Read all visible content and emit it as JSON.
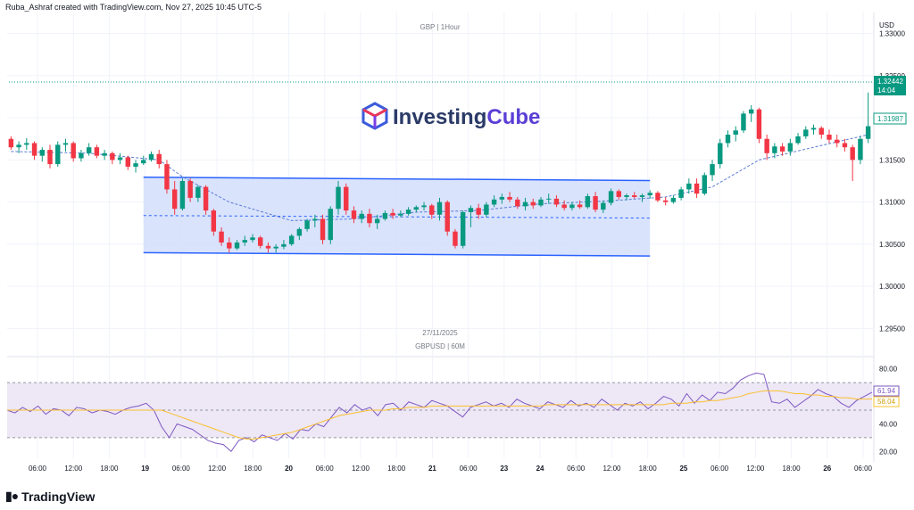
{
  "header": {
    "created_by": "Ruba_Ashraf created with TradingView.com, Nov 27, 2025 10:45 UTC-5"
  },
  "watermark": {
    "symbol_interval": "GBP | 1Hour",
    "logo_text_a": "Investing",
    "logo_text_b": "Cube"
  },
  "caption": {
    "date": "27/11/2025",
    "symbol": "GBPUSD | 60M"
  },
  "currency": "USD",
  "brand": "TradingView",
  "colors": {
    "up": "#089981",
    "down": "#f23645",
    "channel_fill": "#d2defc",
    "channel_line": "#2962ff",
    "rsi_line": "#7e57c2",
    "rsi_ma": "#fbc02d",
    "rsi_band": "#ede7f6",
    "price_tag": "#089981"
  },
  "price_labels": {
    "current": "1.32442",
    "countdown": "14:04",
    "ma_value": "1.31987"
  },
  "rsi_labels": {
    "rsi": "61.94",
    "ma": "58.04"
  },
  "chart_data": [
    {
      "type": "candlestick",
      "title": "GBP | 1Hour",
      "ylim": [
        1.2925,
        1.3325
      ],
      "y_ticks": [
        "1.33000",
        "1.32500",
        "1.32000",
        "1.31500",
        "1.31000",
        "1.30500",
        "1.30000",
        "1.29500"
      ],
      "x_ticks": [
        "06:00",
        "12:00",
        "18:00",
        "19",
        "06:00",
        "12:00",
        "18:00",
        "20",
        "06:00",
        "12:00",
        "18:00",
        "21",
        "06:00",
        "23",
        "24",
        "06:00",
        "12:00",
        "18:00",
        "25",
        "06:00",
        "12:00",
        "18:00",
        "26",
        "06:00"
      ],
      "x_ticks_bold": [
        "19",
        "20",
        "21",
        "23",
        "24",
        "25",
        "26"
      ],
      "candles": [
        [
          1.3175,
          1.3178,
          1.3162,
          1.3165
        ],
        [
          1.3165,
          1.3172,
          1.3158,
          1.3168
        ],
        [
          1.3168,
          1.3176,
          1.3162,
          1.317
        ],
        [
          1.317,
          1.3172,
          1.315,
          1.3155
        ],
        [
          1.3155,
          1.3165,
          1.3148,
          1.3162
        ],
        [
          1.3162,
          1.3168,
          1.314,
          1.3145
        ],
        [
          1.3145,
          1.3172,
          1.3142,
          1.3168
        ],
        [
          1.3168,
          1.3175,
          1.316,
          1.317
        ],
        [
          1.317,
          1.3172,
          1.3148,
          1.3152
        ],
        [
          1.3152,
          1.3162,
          1.3148,
          1.3158
        ],
        [
          1.3158,
          1.317,
          1.3155,
          1.3165
        ],
        [
          1.3165,
          1.3168,
          1.3152,
          1.3155
        ],
        [
          1.3155,
          1.3162,
          1.315,
          1.3158
        ],
        [
          1.3158,
          1.316,
          1.3145,
          1.315
        ],
        [
          1.315,
          1.3158,
          1.3145,
          1.3153
        ],
        [
          1.3153,
          1.3155,
          1.3138,
          1.3142
        ],
        [
          1.3142,
          1.315,
          1.3135,
          1.3146
        ],
        [
          1.3146,
          1.3155,
          1.3144,
          1.315
        ],
        [
          1.315,
          1.316,
          1.3148,
          1.3157
        ],
        [
          1.3157,
          1.3162,
          1.314,
          1.3145
        ],
        [
          1.3145,
          1.315,
          1.311,
          1.3115
        ],
        [
          1.3115,
          1.3125,
          1.3085,
          1.3092
        ],
        [
          1.3092,
          1.3128,
          1.309,
          1.3125
        ],
        [
          1.3125,
          1.3128,
          1.31,
          1.3105
        ],
        [
          1.3105,
          1.312,
          1.31,
          1.3118
        ],
        [
          1.3118,
          1.312,
          1.3085,
          1.309
        ],
        [
          1.309,
          1.3092,
          1.306,
          1.3065
        ],
        [
          1.3065,
          1.307,
          1.3048,
          1.3052
        ],
        [
          1.3052,
          1.3058,
          1.304,
          1.3045
        ],
        [
          1.3045,
          1.3055,
          1.3043,
          1.3052
        ],
        [
          1.3052,
          1.306,
          1.3048,
          1.3055
        ],
        [
          1.3055,
          1.3062,
          1.3052,
          1.3058
        ],
        [
          1.3058,
          1.306,
          1.3045,
          1.3048
        ],
        [
          1.3048,
          1.3052,
          1.304,
          1.3045
        ],
        [
          1.3045,
          1.305,
          1.304,
          1.3047
        ],
        [
          1.3047,
          1.3055,
          1.3044,
          1.305
        ],
        [
          1.305,
          1.3062,
          1.3048,
          1.306
        ],
        [
          1.306,
          1.307,
          1.3055,
          1.3068
        ],
        [
          1.3068,
          1.308,
          1.3065,
          1.3078
        ],
        [
          1.3078,
          1.3085,
          1.307,
          1.308
        ],
        [
          1.308,
          1.3085,
          1.305,
          1.3055
        ],
        [
          1.3055,
          1.3095,
          1.305,
          1.3092
        ],
        [
          1.3092,
          1.3125,
          1.3085,
          1.3118
        ],
        [
          1.3118,
          1.3122,
          1.3085,
          1.309
        ],
        [
          1.309,
          1.3095,
          1.3075,
          1.308
        ],
        [
          1.308,
          1.309,
          1.3075,
          1.3086
        ],
        [
          1.3086,
          1.3092,
          1.307,
          1.3075
        ],
        [
          1.3075,
          1.3085,
          1.3068,
          1.308
        ],
        [
          1.308,
          1.309,
          1.3078,
          1.3087
        ],
        [
          1.3087,
          1.3092,
          1.308,
          1.3084
        ],
        [
          1.3084,
          1.309,
          1.3082,
          1.3086
        ],
        [
          1.3086,
          1.3094,
          1.3084,
          1.3091
        ],
        [
          1.3091,
          1.3096,
          1.3088,
          1.3094
        ],
        [
          1.3094,
          1.31,
          1.309,
          1.3096
        ],
        [
          1.3096,
          1.3098,
          1.308,
          1.3085
        ],
        [
          1.3085,
          1.3105,
          1.3078,
          1.31
        ],
        [
          1.31,
          1.3102,
          1.306,
          1.3065
        ],
        [
          1.3065,
          1.3068,
          1.3045,
          1.3048
        ],
        [
          1.3048,
          1.309,
          1.3045,
          1.3088
        ],
        [
          1.3088,
          1.3096,
          1.307,
          1.3093
        ],
        [
          1.3093,
          1.3098,
          1.308,
          1.3085
        ],
        [
          1.3085,
          1.31,
          1.3082,
          1.3097
        ],
        [
          1.3097,
          1.3108,
          1.3094,
          1.3103
        ],
        [
          1.3103,
          1.311,
          1.3098,
          1.3106
        ],
        [
          1.3106,
          1.3112,
          1.31,
          1.3103
        ],
        [
          1.3103,
          1.3106,
          1.3092,
          1.3095
        ],
        [
          1.3095,
          1.3105,
          1.309,
          1.31
        ],
        [
          1.31,
          1.3104,
          1.3092,
          1.3096
        ],
        [
          1.3096,
          1.3106,
          1.3094,
          1.3103
        ],
        [
          1.3103,
          1.311,
          1.3098,
          1.3104
        ],
        [
          1.3104,
          1.3108,
          1.3094,
          1.3097
        ],
        [
          1.3097,
          1.3102,
          1.309,
          1.3093
        ],
        [
          1.3093,
          1.31,
          1.309,
          1.3097
        ],
        [
          1.3097,
          1.3102,
          1.3092,
          1.3094
        ],
        [
          1.3094,
          1.311,
          1.3092,
          1.3107
        ],
        [
          1.3107,
          1.3112,
          1.3088,
          1.3091
        ],
        [
          1.3091,
          1.3102,
          1.3087,
          1.3099
        ],
        [
          1.3099,
          1.3116,
          1.3096,
          1.3113
        ],
        [
          1.3113,
          1.3115,
          1.3103,
          1.3106
        ],
        [
          1.3106,
          1.311,
          1.3102,
          1.3108
        ],
        [
          1.3108,
          1.3112,
          1.3104,
          1.3106
        ],
        [
          1.3106,
          1.311,
          1.31,
          1.3108
        ],
        [
          1.3108,
          1.3114,
          1.3104,
          1.3111
        ],
        [
          1.3111,
          1.3113,
          1.31,
          1.3102
        ],
        [
          1.3102,
          1.3106,
          1.3096,
          1.31
        ],
        [
          1.31,
          1.3108,
          1.3098,
          1.3105
        ],
        [
          1.3105,
          1.3118,
          1.3102,
          1.3115
        ],
        [
          1.3115,
          1.3128,
          1.311,
          1.3122
        ],
        [
          1.3122,
          1.3128,
          1.3105,
          1.311
        ],
        [
          1.311,
          1.3135,
          1.3108,
          1.3132
        ],
        [
          1.3132,
          1.315,
          1.3125,
          1.3145
        ],
        [
          1.3145,
          1.3175,
          1.314,
          1.317
        ],
        [
          1.317,
          1.3185,
          1.3165,
          1.318
        ],
        [
          1.318,
          1.319,
          1.3172,
          1.3185
        ],
        [
          1.3185,
          1.3208,
          1.3182,
          1.3205
        ],
        [
          1.3205,
          1.3215,
          1.3195,
          1.321
        ],
        [
          1.321,
          1.3212,
          1.317,
          1.3175
        ],
        [
          1.3175,
          1.318,
          1.315,
          1.3158
        ],
        [
          1.3158,
          1.317,
          1.3152,
          1.3166
        ],
        [
          1.3166,
          1.317,
          1.3155,
          1.316
        ],
        [
          1.316,
          1.3175,
          1.3155,
          1.317
        ],
        [
          1.317,
          1.3182,
          1.3168,
          1.3178
        ],
        [
          1.3178,
          1.319,
          1.3175,
          1.3186
        ],
        [
          1.3186,
          1.3192,
          1.318,
          1.3188
        ],
        [
          1.3188,
          1.319,
          1.3175,
          1.318
        ],
        [
          1.318,
          1.3186,
          1.317,
          1.3174
        ],
        [
          1.3174,
          1.318,
          1.3165,
          1.317
        ],
        [
          1.317,
          1.3175,
          1.316,
          1.3165
        ],
        [
          1.3165,
          1.3168,
          1.3125,
          1.315
        ],
        [
          1.315,
          1.3178,
          1.3145,
          1.3175
        ],
        [
          1.3175,
          1.323,
          1.317,
          1.319
        ]
      ],
      "channel": {
        "upper": [
          1.31295,
          1.31255
        ],
        "lower": [
          1.304,
          1.3036
        ],
        "mid": [
          1.3084,
          1.3081
        ]
      },
      "ma_line": [
        [
          0,
          1.316
        ],
        [
          10,
          1.3158
        ],
        [
          19,
          1.315
        ],
        [
          22,
          1.313
        ],
        [
          28,
          1.31
        ],
        [
          36,
          1.3078
        ],
        [
          44,
          1.308
        ],
        [
          52,
          1.3088
        ],
        [
          60,
          1.309
        ],
        [
          68,
          1.3098
        ],
        [
          76,
          1.3101
        ],
        [
          84,
          1.3106
        ],
        [
          90,
          1.3118
        ],
        [
          96,
          1.315
        ],
        [
          110,
          1.318
        ]
      ]
    },
    {
      "type": "line",
      "title": "RSI",
      "ylim": [
        15,
        85
      ],
      "y_ticks": [
        "80.00",
        "40.00",
        "20.00"
      ],
      "band": [
        30,
        70
      ],
      "middle": 50,
      "series": [
        {
          "role": "rsi",
          "values": [
            50,
            48,
            52,
            49,
            53,
            47,
            51,
            50,
            46,
            52,
            51,
            48,
            50,
            49,
            47,
            50,
            52,
            53,
            55,
            50,
            38,
            30,
            40,
            38,
            36,
            32,
            28,
            26,
            25,
            20,
            28,
            30,
            27,
            32,
            30,
            28,
            33,
            29,
            36,
            35,
            40,
            38,
            45,
            52,
            48,
            54,
            50,
            52,
            46,
            54,
            55,
            50,
            56,
            54,
            52,
            57,
            55,
            53,
            49,
            45,
            52,
            54,
            56,
            53,
            55,
            52,
            58,
            55,
            53,
            51,
            56,
            54,
            52,
            57,
            53,
            55,
            52,
            58,
            54,
            50,
            55,
            53,
            56,
            51,
            55,
            60,
            58,
            53,
            62,
            55,
            61,
            57,
            63,
            62,
            66,
            72,
            75,
            77,
            76,
            56,
            55,
            58,
            52,
            56,
            60,
            65,
            62,
            60,
            55,
            52,
            57,
            60,
            63
          ]
        },
        {
          "role": "rsi-ma",
          "values": [
            50,
            50,
            50,
            50,
            50,
            50,
            50,
            50,
            50,
            50,
            50,
            50,
            50,
            50,
            50,
            50,
            50,
            50,
            50,
            50,
            50,
            48,
            46,
            44,
            42,
            40,
            38,
            36,
            34,
            32,
            30,
            29,
            29,
            30,
            31,
            32,
            33,
            34,
            36,
            38,
            40,
            42,
            44,
            46,
            47,
            48,
            49,
            50,
            50,
            50,
            51,
            51,
            52,
            52,
            52,
            53,
            53,
            53,
            53,
            53,
            53,
            53,
            53,
            53,
            53,
            53,
            53,
            53,
            53,
            53,
            54,
            54,
            54,
            54,
            54,
            54,
            54,
            54,
            54,
            54,
            54,
            54,
            54,
            54,
            54,
            54,
            55,
            55,
            55,
            56,
            56,
            57,
            57,
            58,
            59,
            60,
            62,
            63,
            64,
            64,
            64,
            63,
            62,
            62,
            61,
            61,
            60,
            60,
            59,
            59,
            58,
            58,
            58
          ]
        }
      ]
    }
  ]
}
